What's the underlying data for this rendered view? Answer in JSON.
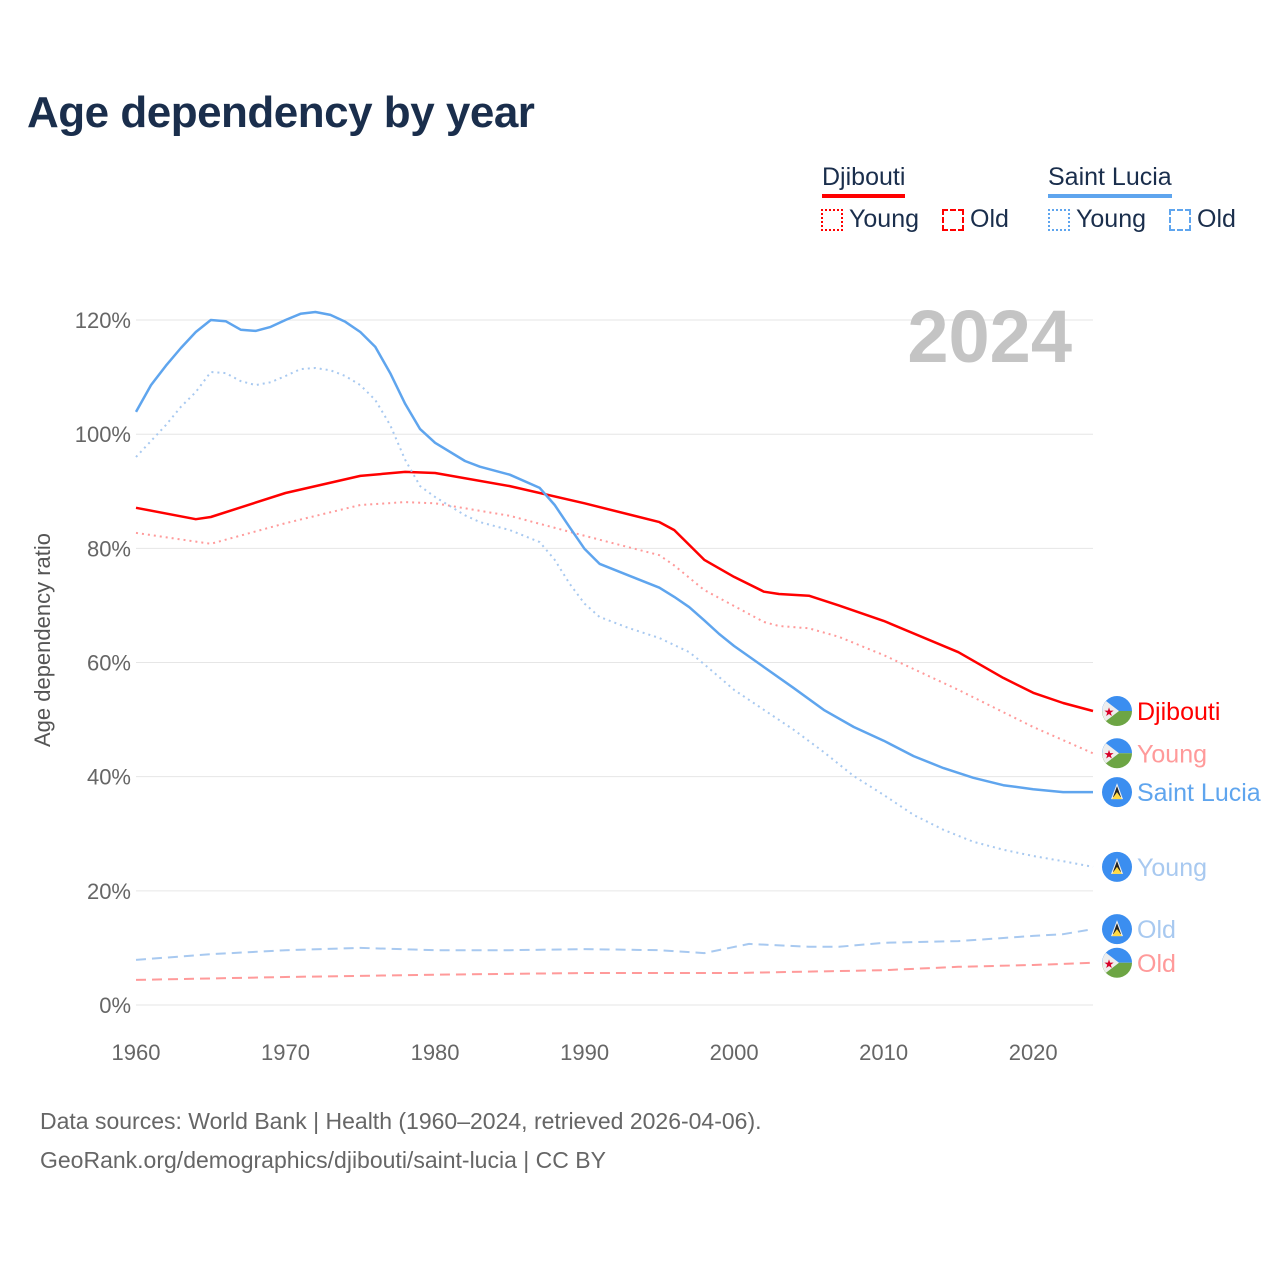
{
  "chart_data": {
    "type": "line",
    "title": "Age dependency by year",
    "ylabel": "Age dependency ratio",
    "xlabel": "",
    "year_watermark": "2024",
    "xlim": [
      1960,
      2024
    ],
    "ylim": [
      0,
      125
    ],
    "x_ticks": [
      1960,
      1970,
      1980,
      1990,
      2000,
      2010,
      2020
    ],
    "y_ticks": [
      0,
      20,
      40,
      60,
      80,
      100,
      120
    ],
    "y_tick_labels": [
      "0%",
      "20%",
      "40%",
      "60%",
      "80%",
      "100%",
      "120%"
    ],
    "grid": true,
    "legend": {
      "placement": "top-right",
      "countries": [
        {
          "name": "Djibouti",
          "color": "#ff0000",
          "young": "Young",
          "old": "Old"
        },
        {
          "name": "Saint Lucia",
          "color": "#5fa5ee",
          "young": "Young",
          "old": "Old"
        }
      ]
    },
    "series": [
      {
        "name": "Djibouti",
        "end_label": "Djibouti",
        "country": "Djibouti",
        "kind": "total",
        "color": "#ff0000",
        "points": [
          [
            1960,
            87.1
          ],
          [
            1964,
            85.1
          ],
          [
            1965,
            85.5
          ],
          [
            1970,
            89.7
          ],
          [
            1975,
            92.7
          ],
          [
            1978,
            93.4
          ],
          [
            1980,
            93.2
          ],
          [
            1985,
            90.9
          ],
          [
            1990,
            87.9
          ],
          [
            1995,
            84.6
          ],
          [
            1996,
            83.2
          ],
          [
            1998,
            78
          ],
          [
            2000,
            75
          ],
          [
            2002,
            72.4
          ],
          [
            2003,
            72
          ],
          [
            2005,
            71.7
          ],
          [
            2007,
            70
          ],
          [
            2010,
            67.3
          ],
          [
            2015,
            61.8
          ],
          [
            2018,
            57.3
          ],
          [
            2020,
            54.7
          ],
          [
            2022,
            52.9
          ],
          [
            2024,
            51.5
          ]
        ]
      },
      {
        "name": "Djibouti Young",
        "end_label": "Young",
        "country": "Djibouti",
        "kind": "young",
        "color": "#ff9a9a",
        "points": [
          [
            1960,
            82.7
          ],
          [
            1965,
            80.8
          ],
          [
            1970,
            84.4
          ],
          [
            1975,
            87.6
          ],
          [
            1978,
            88.1
          ],
          [
            1980,
            87.9
          ],
          [
            1985,
            85.7
          ],
          [
            1990,
            82.2
          ],
          [
            1995,
            78.8
          ],
          [
            1996,
            77
          ],
          [
            1998,
            72.7
          ],
          [
            2000,
            69.9
          ],
          [
            2002,
            67.1
          ],
          [
            2003,
            66.4
          ],
          [
            2005,
            66
          ],
          [
            2007,
            64.5
          ],
          [
            2010,
            61.3
          ],
          [
            2015,
            55.2
          ],
          [
            2020,
            48.7
          ],
          [
            2024,
            44.1
          ]
        ]
      },
      {
        "name": "Saint Lucia",
        "end_label": "Saint Lucia",
        "country": "Saint Lucia",
        "kind": "total",
        "color": "#5fa5ee",
        "points": [
          [
            1960,
            103.9
          ],
          [
            1961,
            108.6
          ],
          [
            1962,
            112
          ],
          [
            1963,
            115.1
          ],
          [
            1964,
            117.9
          ],
          [
            1965,
            120
          ],
          [
            1966,
            119.8
          ],
          [
            1967,
            118.3
          ],
          [
            1968,
            118.1
          ],
          [
            1969,
            118.8
          ],
          [
            1970,
            120
          ],
          [
            1971,
            121.1
          ],
          [
            1972,
            121.4
          ],
          [
            1973,
            120.9
          ],
          [
            1974,
            119.7
          ],
          [
            1975,
            117.9
          ],
          [
            1976,
            115.3
          ],
          [
            1977,
            110.7
          ],
          [
            1978,
            105.3
          ],
          [
            1979,
            100.9
          ],
          [
            1980,
            98.5
          ],
          [
            1982,
            95.3
          ],
          [
            1983,
            94.3
          ],
          [
            1985,
            92.9
          ],
          [
            1987,
            90.6
          ],
          [
            1988,
            87.6
          ],
          [
            1989,
            83.7
          ],
          [
            1990,
            79.9
          ],
          [
            1991,
            77.3
          ],
          [
            1993,
            75.2
          ],
          [
            1995,
            73.1
          ],
          [
            1996,
            71.5
          ],
          [
            1997,
            69.7
          ],
          [
            1998,
            67.4
          ],
          [
            1999,
            65
          ],
          [
            2000,
            62.9
          ],
          [
            2002,
            59.2
          ],
          [
            2004,
            55.5
          ],
          [
            2006,
            51.7
          ],
          [
            2008,
            48.7
          ],
          [
            2010,
            46.3
          ],
          [
            2012,
            43.6
          ],
          [
            2014,
            41.5
          ],
          [
            2016,
            39.8
          ],
          [
            2018,
            38.5
          ],
          [
            2020,
            37.8
          ],
          [
            2022,
            37.3
          ],
          [
            2024,
            37.3
          ]
        ]
      },
      {
        "name": "Saint Lucia Young",
        "end_label": "Young",
        "country": "Saint Lucia",
        "kind": "young",
        "color": "#a8c9f0",
        "points": [
          [
            1960,
            96
          ],
          [
            1962,
            101.6
          ],
          [
            1963,
            104.8
          ],
          [
            1964,
            107.4
          ],
          [
            1965,
            110.9
          ],
          [
            1966,
            110.7
          ],
          [
            1967,
            109.3
          ],
          [
            1968,
            108.6
          ],
          [
            1969,
            109.1
          ],
          [
            1970,
            110.2
          ],
          [
            1971,
            111.4
          ],
          [
            1972,
            111.6
          ],
          [
            1973,
            111.2
          ],
          [
            1974,
            110.2
          ],
          [
            1975,
            108.6
          ],
          [
            1976,
            106
          ],
          [
            1977,
            101.6
          ],
          [
            1978,
            95.5
          ],
          [
            1979,
            90.9
          ],
          [
            1980,
            89
          ],
          [
            1982,
            85.8
          ],
          [
            1983,
            84.6
          ],
          [
            1985,
            83.2
          ],
          [
            1987,
            81.1
          ],
          [
            1988,
            78
          ],
          [
            1989,
            73.8
          ],
          [
            1990,
            70.3
          ],
          [
            1991,
            68
          ],
          [
            1993,
            66
          ],
          [
            1995,
            64.3
          ],
          [
            1997,
            61.8
          ],
          [
            1998,
            59.7
          ],
          [
            2000,
            55.2
          ],
          [
            2002,
            51.7
          ],
          [
            2004,
            48.2
          ],
          [
            2006,
            44.3
          ],
          [
            2008,
            40.1
          ],
          [
            2010,
            36.8
          ],
          [
            2012,
            33.3
          ],
          [
            2014,
            30.7
          ],
          [
            2016,
            28.6
          ],
          [
            2018,
            27.2
          ],
          [
            2020,
            26.1
          ],
          [
            2022,
            25.2
          ],
          [
            2024,
            24.2
          ]
        ]
      },
      {
        "name": "Saint Lucia Old",
        "end_label": "Old",
        "country": "Saint Lucia",
        "kind": "old",
        "color": "#a8c9f0",
        "points": [
          [
            1960,
            7.9
          ],
          [
            1965,
            8.9
          ],
          [
            1970,
            9.6
          ],
          [
            1975,
            10
          ],
          [
            1980,
            9.6
          ],
          [
            1985,
            9.6
          ],
          [
            1990,
            9.8
          ],
          [
            1995,
            9.6
          ],
          [
            1998,
            9.1
          ],
          [
            2001,
            10.7
          ],
          [
            2005,
            10.2
          ],
          [
            2007,
            10.2
          ],
          [
            2010,
            10.9
          ],
          [
            2015,
            11.2
          ],
          [
            2020,
            12.1
          ],
          [
            2022,
            12.4
          ],
          [
            2024,
            13.3
          ]
        ]
      },
      {
        "name": "Djibouti Old",
        "end_label": "Old",
        "country": "Djibouti",
        "kind": "old",
        "color": "#ff9a9a",
        "points": [
          [
            1960,
            4.4
          ],
          [
            1970,
            4.9
          ],
          [
            1980,
            5.3
          ],
          [
            1990,
            5.6
          ],
          [
            2000,
            5.6
          ],
          [
            2010,
            6.1
          ],
          [
            2015,
            6.7
          ],
          [
            2020,
            7.0
          ],
          [
            2024,
            7.4
          ]
        ]
      }
    ]
  },
  "footer": {
    "line1": "Data sources: World Bank | Health (1960–2024, retrieved 2026-04-06).",
    "line2": "GeoRank.org/demographics/djibouti/saint-lucia | CC BY"
  }
}
